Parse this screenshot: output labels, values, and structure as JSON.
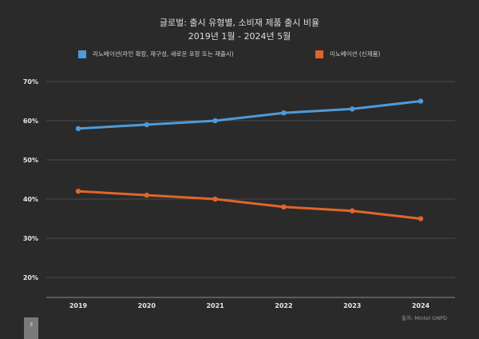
{
  "chart_data": {
    "type": "line",
    "title": "글로벌: 출시 유형별, 소비재 제품 출시 비율",
    "subtitle": "2019년 1월 - 2024년 5월",
    "categories": [
      "2019",
      "2020",
      "2021",
      "2022",
      "2023",
      "2024"
    ],
    "y_ticks": [
      "20%",
      "30%",
      "40%",
      "50%",
      "60%",
      "70%"
    ],
    "ylim": [
      20,
      70
    ],
    "grid": true,
    "legend_position": "top",
    "series": [
      {
        "name": "리노베이션(라인 확장, 재구성, 새로운 포장 또는 재출시)",
        "color": "#4f9ad8",
        "values": [
          58,
          59,
          60,
          62,
          63,
          65
        ]
      },
      {
        "name": "이노베이션 (신제품)",
        "color": "#e0652a",
        "values": [
          42,
          41,
          40,
          38,
          37,
          35
        ]
      }
    ]
  },
  "source": "출처: Mintel GNPD",
  "page_number": "3"
}
